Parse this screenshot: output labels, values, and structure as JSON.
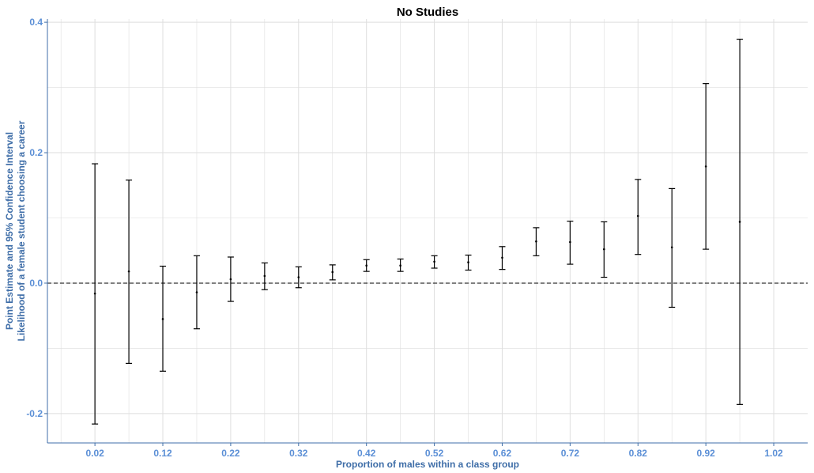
{
  "chart_data": {
    "type": "errorbar",
    "title": "No Studies",
    "xlabel": "Proportion of males within a class group",
    "ylabel_lines": [
      "Point Estimate and 95% Confidence Interval",
      "Likelihood of a female student choosing a career"
    ],
    "xlim": [
      -0.05,
      1.07
    ],
    "ylim": [
      -0.245,
      0.405
    ],
    "x_ticks": [
      0.02,
      0.12,
      0.22,
      0.32,
      0.42,
      0.52,
      0.62,
      0.72,
      0.82,
      0.92,
      1.02
    ],
    "x_tick_labels": [
      "0.02",
      "0.12",
      "0.22",
      "0.32",
      "0.42",
      "0.52",
      "0.62",
      "0.72",
      "0.82",
      "0.92",
      "1.02"
    ],
    "y_ticks": [
      -0.2,
      0.0,
      0.2,
      0.4
    ],
    "y_tick_labels": [
      "-0.2",
      "0.0",
      "0.2",
      "0.4"
    ],
    "reference_line": {
      "y": 0.0,
      "style": "dashed"
    },
    "grid": true,
    "colors": {
      "tick_label": "#5b8fd6",
      "axis_title": "#3f6ea8",
      "axis_line": "#3f6ea8",
      "grid": "#dedede",
      "mark": "#000000"
    },
    "points": [
      {
        "x": 0.02,
        "estimate": -0.016,
        "lower": -0.216,
        "upper": 0.183
      },
      {
        "x": 0.07,
        "estimate": 0.018,
        "lower": -0.123,
        "upper": 0.158
      },
      {
        "x": 0.12,
        "estimate": -0.055,
        "lower": -0.135,
        "upper": 0.026
      },
      {
        "x": 0.17,
        "estimate": -0.014,
        "lower": -0.07,
        "upper": 0.042
      },
      {
        "x": 0.22,
        "estimate": 0.006,
        "lower": -0.028,
        "upper": 0.04
      },
      {
        "x": 0.27,
        "estimate": 0.011,
        "lower": -0.01,
        "upper": 0.031
      },
      {
        "x": 0.32,
        "estimate": 0.009,
        "lower": -0.007,
        "upper": 0.025
      },
      {
        "x": 0.37,
        "estimate": 0.017,
        "lower": 0.005,
        "upper": 0.028
      },
      {
        "x": 0.42,
        "estimate": 0.027,
        "lower": 0.018,
        "upper": 0.036
      },
      {
        "x": 0.47,
        "estimate": 0.027,
        "lower": 0.018,
        "upper": 0.037
      },
      {
        "x": 0.52,
        "estimate": 0.033,
        "lower": 0.023,
        "upper": 0.042
      },
      {
        "x": 0.57,
        "estimate": 0.032,
        "lower": 0.02,
        "upper": 0.043
      },
      {
        "x": 0.62,
        "estimate": 0.039,
        "lower": 0.021,
        "upper": 0.056
      },
      {
        "x": 0.67,
        "estimate": 0.064,
        "lower": 0.042,
        "upper": 0.085
      },
      {
        "x": 0.72,
        "estimate": 0.063,
        "lower": 0.029,
        "upper": 0.095
      },
      {
        "x": 0.77,
        "estimate": 0.052,
        "lower": 0.009,
        "upper": 0.094
      },
      {
        "x": 0.82,
        "estimate": 0.103,
        "lower": 0.044,
        "upper": 0.159
      },
      {
        "x": 0.87,
        "estimate": 0.055,
        "lower": -0.037,
        "upper": 0.145
      },
      {
        "x": 0.92,
        "estimate": 0.179,
        "lower": 0.052,
        "upper": 0.306
      },
      {
        "x": 0.97,
        "estimate": 0.094,
        "lower": -0.186,
        "upper": 0.374
      }
    ]
  }
}
